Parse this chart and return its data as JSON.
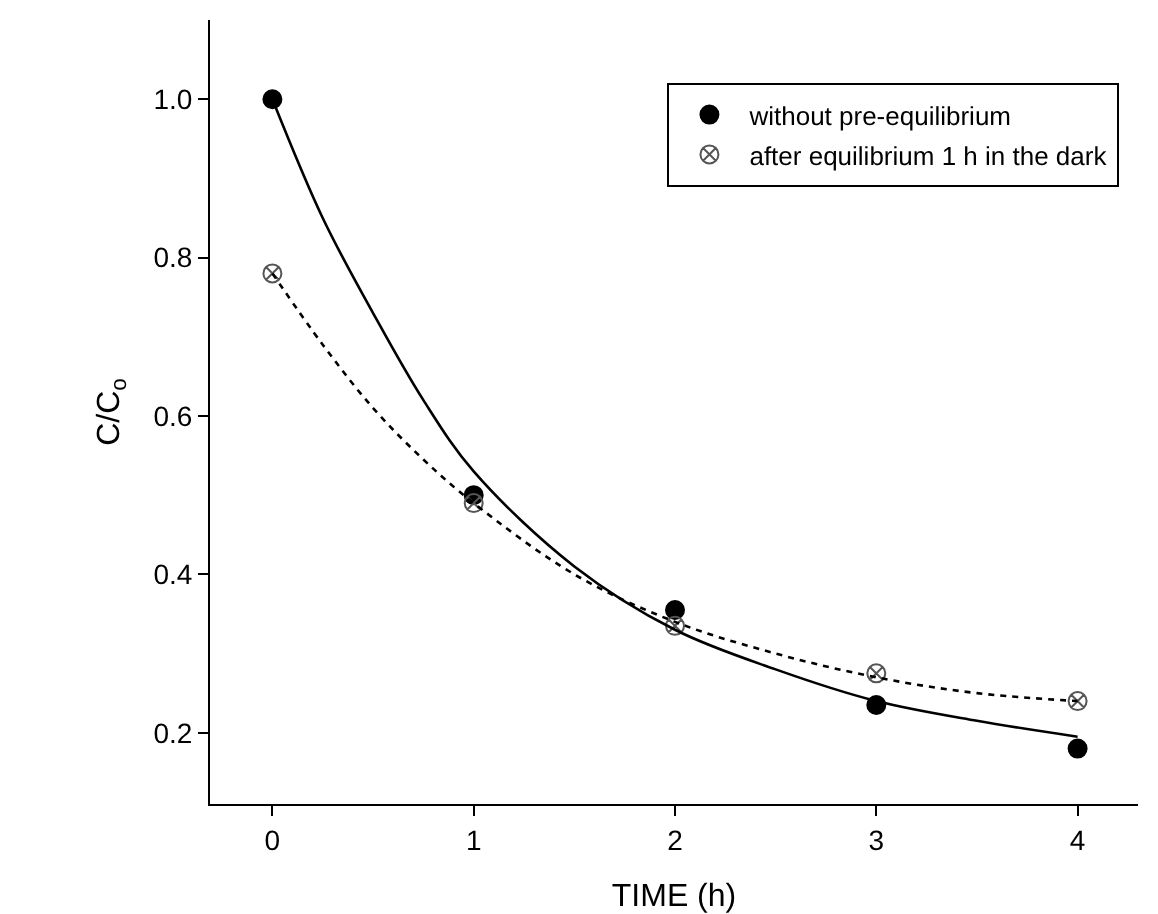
{
  "chart_data": {
    "type": "scatter",
    "xlabel": "TIME (h)",
    "ylabel": "C/C$_{o}$",
    "xlim": [
      -0.31,
      4.3
    ],
    "xticks": [
      0,
      1,
      2,
      3,
      4
    ],
    "ylim": [
      0.11,
      1.1
    ],
    "yticks": [
      0.2,
      0.4,
      0.6,
      0.8,
      {
        "value": 1,
        "label": "1.0"
      }
    ],
    "grid": false,
    "legend": "top right",
    "series": [
      {
        "name": "without pre-equilibrium",
        "marker": "circle",
        "color": "#000000",
        "x": [
          0,
          1,
          2,
          3,
          4
        ],
        "values": [
          1.0,
          0.5,
          0.355,
          0.235,
          0.18
        ]
      },
      {
        "name": "after equilibrium 1 h in the dark",
        "marker": "cross",
        "color": "#555555",
        "x": [
          0,
          1,
          2,
          3,
          4
        ],
        "values": [
          0.78,
          0.49,
          0.335,
          0.275,
          0.24
        ]
      },
      {
        "type": "line",
        "line_style": "solid",
        "marker": "none",
        "color": "#000000",
        "x": [
          0,
          0.25,
          0.5,
          0.75,
          1,
          1.5,
          2,
          2.5,
          3,
          3.5,
          4
        ],
        "values": [
          1.0,
          0.85,
          0.73,
          0.62,
          0.53,
          0.41,
          0.33,
          0.28,
          0.24,
          0.215,
          0.195
        ]
      },
      {
        "type": "line",
        "line_style": "dotted",
        "marker": "none",
        "color": "#000000",
        "x": [
          0,
          0.25,
          0.5,
          0.75,
          1,
          1.5,
          2,
          2.5,
          3,
          3.5,
          4
        ],
        "values": [
          0.78,
          0.69,
          0.61,
          0.545,
          0.49,
          0.4,
          0.34,
          0.3,
          0.27,
          0.25,
          0.24
        ]
      }
    ]
  }
}
